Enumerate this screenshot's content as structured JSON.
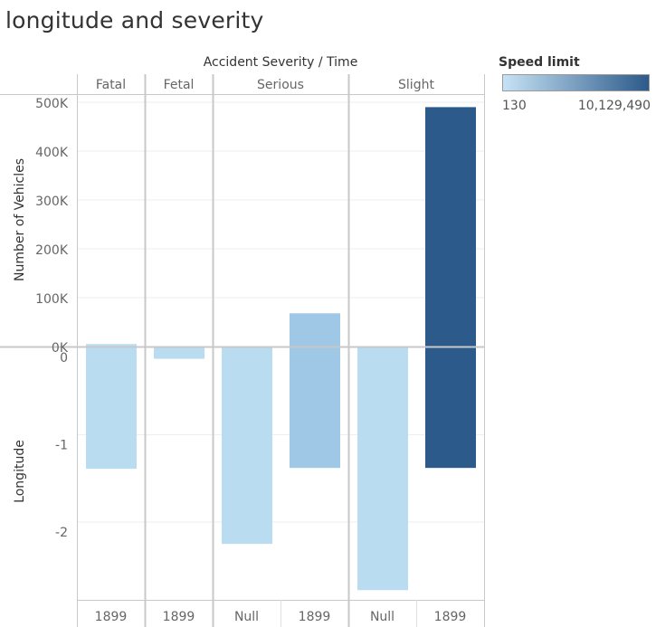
{
  "title": "longitude and severity",
  "legend": {
    "title": "Speed limit",
    "min_label": "130",
    "max_label": "10,129,490",
    "color_low": "#c6e2f5",
    "color_high": "#2c5a8a"
  },
  "chart_data": {
    "type": "bar",
    "header": "Accident Severity / Time",
    "severity_groups": [
      {
        "label": "Fatal",
        "times": [
          "1899"
        ]
      },
      {
        "label": "Fetal",
        "times": [
          "1899"
        ]
      },
      {
        "label": "Serious",
        "times": [
          "Null",
          "1899"
        ]
      },
      {
        "label": "Slight",
        "times": [
          "Null",
          "1899"
        ]
      }
    ],
    "top_pane": {
      "ylabel": "Number of Vehicles",
      "ylim": [
        0,
        500000
      ],
      "ticks": [
        0,
        100000,
        200000,
        300000,
        400000,
        500000
      ],
      "tick_labels": [
        "0K",
        "100K",
        "200K",
        "300K",
        "400K",
        "500K"
      ],
      "values": [
        5000,
        0,
        0,
        68000,
        0,
        490000
      ]
    },
    "bottom_pane": {
      "ylabel": "Longitude",
      "ylim": [
        -2.9,
        0
      ],
      "ticks": [
        0,
        -1,
        -2
      ],
      "tick_labels": [
        "0",
        "-1",
        "-2"
      ],
      "values": [
        -1.39,
        -0.13,
        -2.25,
        -1.38,
        -2.78,
        -1.38
      ]
    },
    "bar_colors": [
      "#badcf0",
      "#badcf0",
      "#badcf0",
      "#9ec8e6",
      "#badcf0",
      "#2c5a8a"
    ],
    "grid": true
  }
}
